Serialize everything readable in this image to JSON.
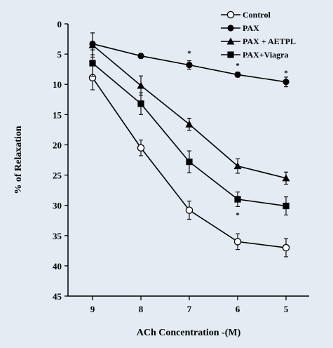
{
  "chart_data": {
    "type": "line",
    "title": "",
    "xlabel": "ACh Concentration -(M)",
    "ylabel": "% of  Relaxation",
    "x": [
      9,
      8,
      7,
      6,
      5
    ],
    "xticks": [
      "9",
      "8",
      "7",
      "6",
      "5"
    ],
    "ylim": [
      0,
      45
    ],
    "y_inverted": true,
    "yticks": [
      "0",
      "5",
      "10",
      "15",
      "20",
      "25",
      "30",
      "35",
      "40",
      "45"
    ],
    "grid": false,
    "legend_position": "top-right",
    "series": [
      {
        "name": "Control",
        "marker": "open-circle",
        "values": [
          8.9,
          20.5,
          30.8,
          36,
          37
        ],
        "errors": [
          2,
          1.3,
          1.5,
          1.3,
          1.5
        ]
      },
      {
        "name": "PAX",
        "marker": "filled-circle",
        "values": [
          3.3,
          5.3,
          6.8,
          8.4,
          9.6
        ],
        "errors": [
          1.8,
          0.4,
          0.7,
          0.4,
          0.8
        ]
      },
      {
        "name": "PAX + AETPL",
        "marker": "triangle",
        "values": [
          3.5,
          10.2,
          16.6,
          23.5,
          25.5
        ],
        "errors": [
          2,
          1.6,
          1,
          1.2,
          1
        ]
      },
      {
        "name": "PAX+Viagra",
        "marker": "square",
        "values": [
          6.5,
          13.2,
          22.8,
          29,
          30.1
        ],
        "errors": [
          2.2,
          1.8,
          1.8,
          1.2,
          1.5
        ]
      }
    ],
    "annotations": [
      {
        "text": "*",
        "x": 7,
        "y": 4.6
      },
      {
        "text": "*",
        "x": 6,
        "y": 6.6
      },
      {
        "text": "*",
        "x": 5,
        "y": 7.8
      },
      {
        "text": "*",
        "x": 6,
        "y": 31.3
      }
    ]
  }
}
